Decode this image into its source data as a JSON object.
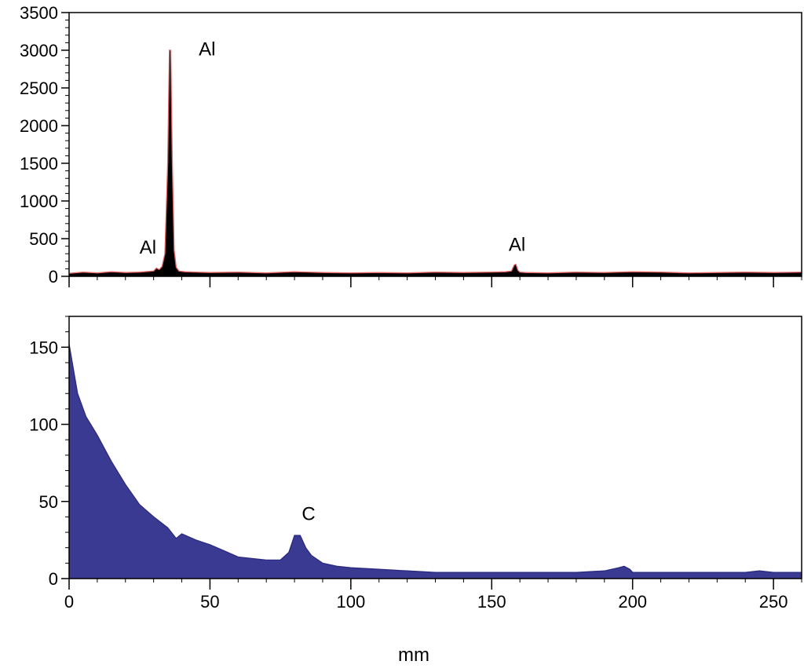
{
  "chart_data": [
    {
      "type": "area",
      "panel": "top",
      "title": "",
      "xlabel": "",
      "ylabel": "",
      "xlim": [
        0,
        260
      ],
      "ylim": [
        0,
        3500
      ],
      "yticks": [
        0,
        500,
        1000,
        1500,
        2000,
        2500,
        3000,
        3500
      ],
      "yticks_minor_step": 100,
      "xticks": [
        0,
        50,
        100,
        150,
        200,
        250
      ],
      "xticks_minor_step": 10,
      "show_x_tick_labels": false,
      "grid": false,
      "legend": "none",
      "colors": {
        "fill": "#000000",
        "line": "#e06060"
      },
      "series": [
        {
          "x": [
            0,
            5,
            10,
            15,
            20,
            25,
            30,
            31,
            32,
            33,
            34,
            35,
            35.6,
            36.1,
            36.6,
            37.3,
            38,
            39,
            41,
            45,
            50,
            60,
            70,
            80,
            90,
            100,
            110,
            120,
            130,
            140,
            150,
            155,
            157,
            158,
            158.6,
            159.3,
            160,
            162,
            170,
            180,
            190,
            200,
            210,
            220,
            230,
            240,
            250,
            260
          ],
          "values": [
            40,
            55,
            45,
            60,
            50,
            55,
            70,
            110,
            90,
            130,
            300,
            1500,
            3000,
            3000,
            1600,
            350,
            120,
            70,
            60,
            55,
            50,
            55,
            45,
            60,
            50,
            45,
            50,
            45,
            55,
            50,
            55,
            60,
            70,
            150,
            160,
            80,
            55,
            50,
            45,
            55,
            50,
            60,
            55,
            45,
            50,
            55,
            50,
            55
          ]
        }
      ],
      "annotations": [
        {
          "text": "Al",
          "x": 28,
          "y": 300
        },
        {
          "text": "Al",
          "x": 49,
          "y": 2930
        },
        {
          "text": "Al",
          "x": 159,
          "y": 340
        }
      ]
    },
    {
      "type": "area",
      "panel": "bottom",
      "title": "",
      "xlabel": "mm",
      "ylabel": "",
      "xlim": [
        0,
        260
      ],
      "ylim": [
        0,
        170
      ],
      "yticks": [
        0,
        50,
        100,
        150
      ],
      "yticks_minor_step": 10,
      "xticks": [
        0,
        50,
        100,
        150,
        200,
        250
      ],
      "xticks_minor_step": 10,
      "show_x_tick_labels": true,
      "grid": false,
      "legend": "none",
      "colors": {
        "fill": "#3b3a92",
        "line": "#2a2a80"
      },
      "series": [
        {
          "x": [
            0,
            3,
            6,
            10,
            15,
            20,
            25,
            30,
            35,
            38,
            40,
            45,
            50,
            55,
            60,
            70,
            75,
            78,
            80,
            82,
            84,
            86,
            90,
            95,
            100,
            110,
            120,
            130,
            140,
            150,
            160,
            170,
            180,
            190,
            195,
            197,
            199,
            200,
            210,
            220,
            230,
            240,
            245,
            250,
            260
          ],
          "values": [
            152,
            120,
            105,
            93,
            76,
            61,
            48,
            40,
            33,
            26,
            29,
            25,
            22,
            18,
            14,
            12,
            12,
            17,
            28,
            28,
            20,
            15,
            10,
            8,
            7,
            6,
            5,
            4,
            4,
            4,
            4,
            4,
            4,
            5,
            7,
            8,
            6,
            4,
            4,
            4,
            4,
            4,
            5,
            4,
            4
          ]
        }
      ],
      "annotations": [
        {
          "text": "C",
          "x": 85,
          "y": 38
        }
      ]
    }
  ]
}
